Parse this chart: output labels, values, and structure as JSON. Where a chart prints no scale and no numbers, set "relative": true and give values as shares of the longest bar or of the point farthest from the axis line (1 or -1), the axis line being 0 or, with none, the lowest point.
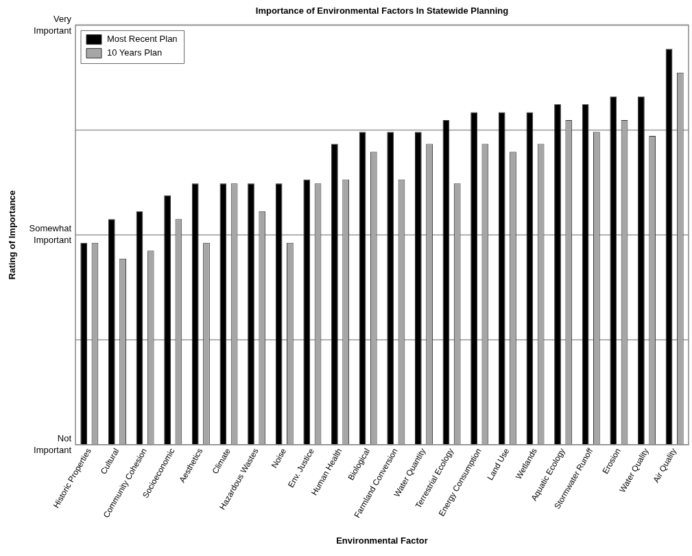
{
  "chart_data": {
    "type": "bar",
    "title": "Importance of Environmental Factors In Statewide Planning",
    "xlabel": "Environmental Factor",
    "ylabel": "Rating of Importance",
    "categories": [
      "Historic Properties",
      "Cultural",
      "Community Cohesion",
      "Socioeconomic",
      "Aesthetics",
      "Climate",
      "Hazardous Wastes",
      "Noise",
      "Env. Justice",
      "Human Health",
      "Biological",
      "Farmland Conversion",
      "Water Quantity",
      "Terrestrial Ecology",
      "Energy Consumption",
      "Land Use",
      "Wetlands",
      "Aquatic Ecology",
      "Stormwater Runoff",
      "Erosion",
      "Water Quality",
      "Air Quality"
    ],
    "series": [
      {
        "name": "Most Recent Plan",
        "color": "#000000",
        "values": [
          0.51,
          0.57,
          0.59,
          0.63,
          0.66,
          0.66,
          0.66,
          0.66,
          0.67,
          0.76,
          0.79,
          0.79,
          0.79,
          0.82,
          0.84,
          0.84,
          0.84,
          0.86,
          0.86,
          0.88,
          0.88,
          1
        ]
      },
      {
        "name": "10 Years Plan",
        "color": "#a6a6a6",
        "values": [
          0.51,
          0.47,
          0.49,
          0.57,
          0.51,
          0.66,
          0.59,
          0.51,
          0.66,
          0.67,
          0.74,
          0.67,
          0.76,
          0.66,
          0.76,
          0.74,
          0.76,
          0.82,
          0.79,
          0.82,
          0.78,
          0.94
        ]
      }
    ],
    "relative": true,
    "annotations": [
      "Not Important",
      "Somewhat Important",
      "Very Important"
    ],
    "grid": "y",
    "legend": "top left"
  }
}
